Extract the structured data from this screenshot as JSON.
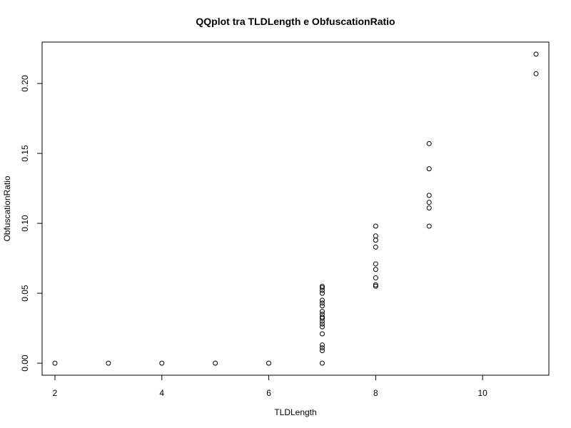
{
  "chart_data": {
    "type": "scatter",
    "title": "QQplot tra TLDLength e ObfuscationRatio",
    "xlabel": "TLDLength",
    "ylabel": "ObfuscationRatio",
    "xlim": [
      1.76,
      11.24
    ],
    "ylim": [
      -0.0086,
      0.2296
    ],
    "xticks": [
      2,
      4,
      6,
      8,
      10
    ],
    "yticks": [
      0.0,
      0.05,
      0.1,
      0.15,
      0.2
    ],
    "ytick_labels": [
      "0.00",
      "0.05",
      "0.10",
      "0.15",
      "0.20"
    ],
    "grid": false,
    "marker": "open-circle",
    "series": [
      {
        "points": [
          [
            2,
            0.0
          ],
          [
            3,
            0.0
          ],
          [
            4,
            0.0
          ],
          [
            5,
            0.0
          ],
          [
            6,
            0.0
          ],
          [
            7,
            0.0
          ],
          [
            7,
            0.009
          ],
          [
            7,
            0.011
          ],
          [
            7,
            0.013
          ],
          [
            7,
            0.021
          ],
          [
            7,
            0.026
          ],
          [
            7,
            0.028
          ],
          [
            7,
            0.03
          ],
          [
            7,
            0.032
          ],
          [
            7,
            0.033
          ],
          [
            7,
            0.035
          ],
          [
            7,
            0.037
          ],
          [
            7,
            0.041
          ],
          [
            7,
            0.043
          ],
          [
            7,
            0.045
          ],
          [
            7,
            0.05
          ],
          [
            7,
            0.052
          ],
          [
            7,
            0.054
          ],
          [
            7,
            0.055
          ],
          [
            8,
            0.055
          ],
          [
            8,
            0.056
          ],
          [
            8,
            0.061
          ],
          [
            8,
            0.067
          ],
          [
            8,
            0.071
          ],
          [
            8,
            0.083
          ],
          [
            8,
            0.088
          ],
          [
            8,
            0.091
          ],
          [
            8,
            0.098
          ],
          [
            9,
            0.098
          ],
          [
            9,
            0.111
          ],
          [
            9,
            0.115
          ],
          [
            9,
            0.12
          ],
          [
            9,
            0.139
          ],
          [
            9,
            0.157
          ],
          [
            11,
            0.207
          ],
          [
            11,
            0.221
          ]
        ]
      }
    ]
  }
}
